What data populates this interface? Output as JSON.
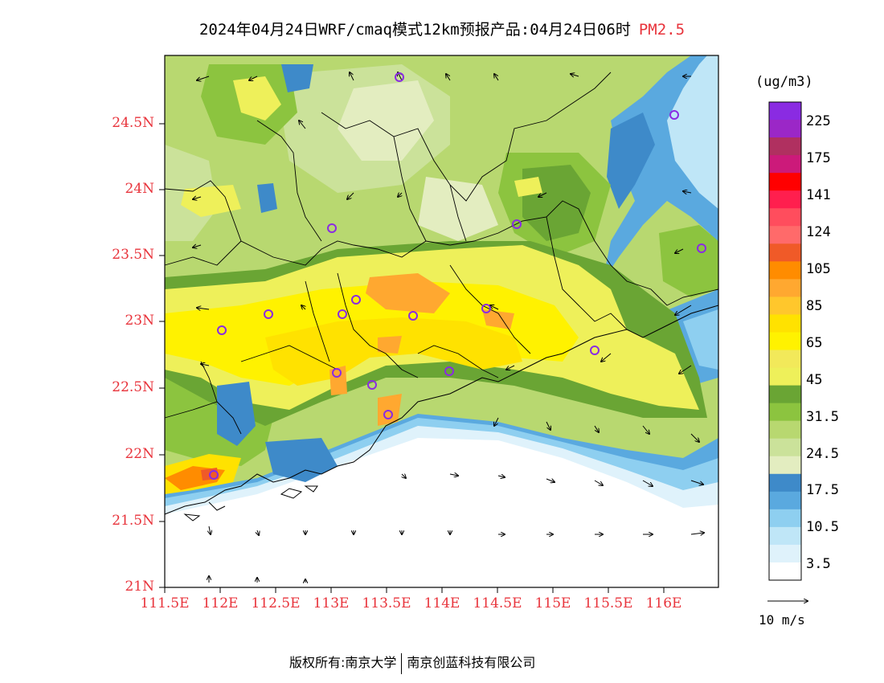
{
  "title": {
    "main": "2024年04月24日WRF/cmaq模式12km预报产品:04月24日06时",
    "pollutant": "PM2.5"
  },
  "axes": {
    "lat_labels": [
      "24.5N",
      "24N",
      "23.5N",
      "23N",
      "22.5N",
      "22N",
      "21.5N",
      "21N"
    ],
    "lon_labels": [
      "111.5E",
      "112E",
      "112.5E",
      "113E",
      "113.5E",
      "114E",
      "114.5E",
      "115E",
      "115.5E",
      "116E"
    ]
  },
  "legend": {
    "unit": "(ug/m3)",
    "labels": [
      "225",
      "175",
      "141",
      "124",
      "105",
      "85",
      "65",
      "45",
      "31.5",
      "24.5",
      "17.5",
      "10.5",
      "3.5"
    ],
    "colors": [
      "#8a2be2",
      "#9b27c7",
      "#b03060",
      "#cc1a7a",
      "#ff0000",
      "#ff1f4e",
      "#ff4d5d",
      "#ff6a6a",
      "#f05a28",
      "#ff8c00",
      "#ffa830",
      "#ffc72c",
      "#ffe200",
      "#fff200",
      "#f2e95a",
      "#eef05a",
      "#6aa534",
      "#8cc43f",
      "#b8d870",
      "#cbe29a",
      "#e3edc0",
      "#3e8ac9",
      "#5aa9df",
      "#8ecff0",
      "#bfe6f7",
      "#dff2fb",
      "#ffffff"
    ]
  },
  "wind_reference": {
    "label": "10 m/s"
  },
  "footer": {
    "left": "版权所有:南京大学",
    "right": "南京创蓝科技有限公司"
  }
}
